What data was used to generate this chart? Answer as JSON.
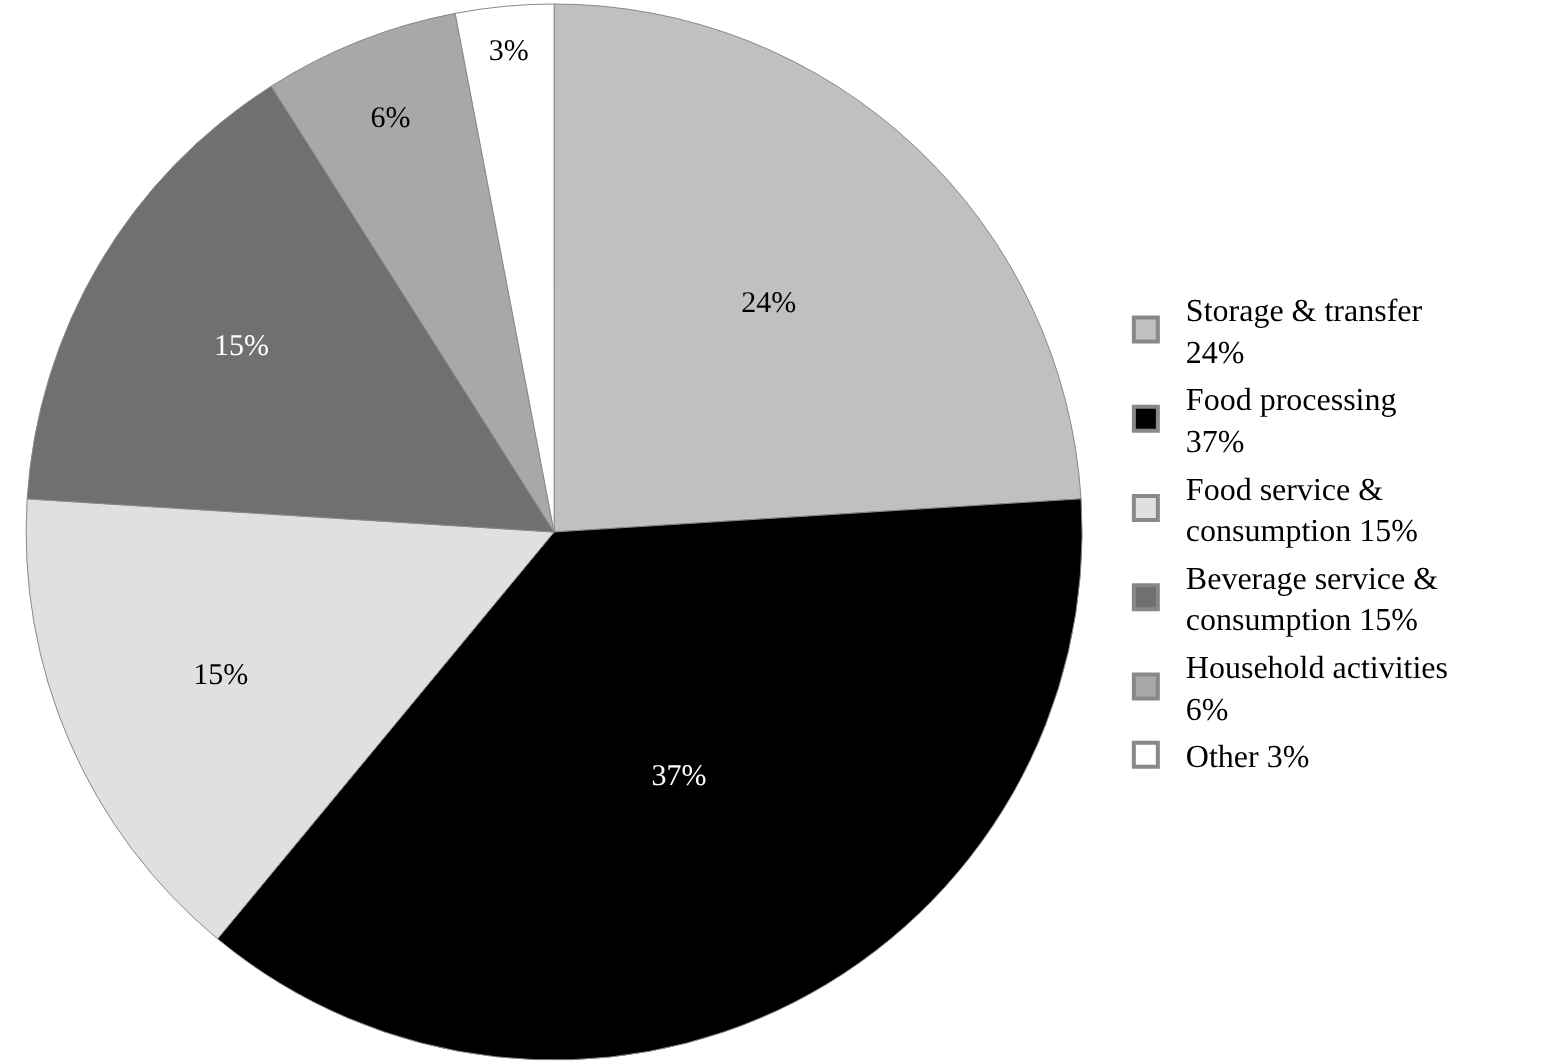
{
  "chart_data": {
    "type": "pie",
    "categories": [
      "Storage & transfer\n24%",
      "Food processing\n37%",
      "Food service &\nconsumption 15%",
      "Beverage service &\nconsumption 15%",
      "Household activities\n6%",
      "Other 3%"
    ],
    "values": [
      24,
      37,
      15,
      15,
      6,
      3
    ],
    "value_labels": [
      "24%",
      "37%",
      "15%",
      "15%",
      "6%",
      "3%"
    ],
    "colors": [
      "#c0c0c0",
      "#000000",
      "#e0e0e0",
      "#707070",
      "#a8a8a8",
      "#ffffff"
    ],
    "legend": "right"
  }
}
